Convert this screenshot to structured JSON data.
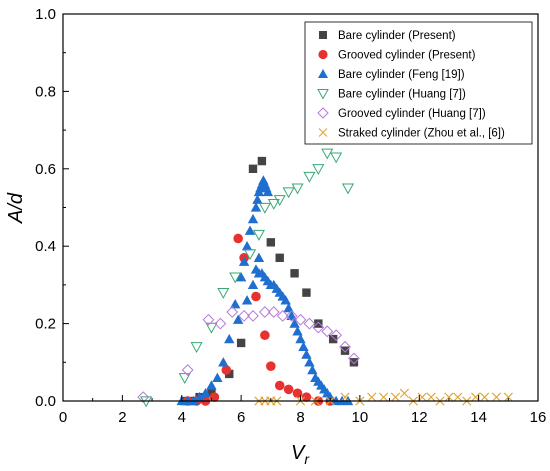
{
  "chart_data": {
    "type": "scatter",
    "xlabel": "V",
    "xlabel_sub": "r",
    "ylabel": "A/d",
    "xlim": [
      0,
      16
    ],
    "ylim": [
      0,
      1.0
    ],
    "xticks": [
      "0",
      "2",
      "4",
      "6",
      "8",
      "10",
      "12",
      "14",
      "16"
    ],
    "yticks": [
      "0.0",
      "0.2",
      "0.4",
      "0.6",
      "0.8",
      "1.0"
    ],
    "grid": false,
    "legend_position": "top-right",
    "series": [
      {
        "name": "Bare cylinder (Present)",
        "marker": "square",
        "color": "#444444",
        "x": [
          4.1,
          4.3,
          4.6,
          5.0,
          5.6,
          6.0,
          6.4,
          6.7,
          7.0,
          7.3,
          7.8,
          8.2,
          8.6,
          9.1,
          9.5,
          9.8
        ],
        "y": [
          0.0,
          0.0,
          0.01,
          0.02,
          0.07,
          0.15,
          0.6,
          0.62,
          0.41,
          0.37,
          0.33,
          0.28,
          0.2,
          0.16,
          0.13,
          0.1
        ]
      },
      {
        "name": "Grooved cylinder (Present)",
        "marker": "circle",
        "color": "#e8322f",
        "x": [
          4.2,
          4.5,
          4.8,
          5.1,
          5.5,
          5.9,
          6.1,
          6.5,
          6.8,
          7.0,
          7.3,
          7.6,
          7.9,
          8.2,
          8.6,
          9.0
        ],
        "y": [
          0.0,
          0.0,
          0.0,
          0.01,
          0.08,
          0.42,
          0.37,
          0.27,
          0.17,
          0.09,
          0.04,
          0.03,
          0.02,
          0.01,
          0.0,
          0.0
        ]
      },
      {
        "name": "Bare cylinder (Feng [19])",
        "marker": "triangle-up",
        "color": "#1f6fd1",
        "x": [
          4.0,
          4.2,
          4.4,
          4.6,
          4.8,
          5.0,
          5.2,
          5.4,
          5.6,
          5.8,
          6.0,
          6.1,
          6.2,
          6.3,
          6.4,
          6.5,
          6.55,
          6.6,
          6.65,
          6.7,
          6.75,
          6.8,
          6.85,
          6.9,
          6.6,
          6.7,
          6.8,
          6.9,
          7.0,
          7.1,
          7.2,
          7.3,
          7.4,
          7.5,
          7.6,
          7.7,
          7.8,
          7.9,
          8.0,
          8.1,
          8.2,
          8.3,
          8.4,
          8.5,
          8.6,
          8.7,
          8.8,
          8.9,
          9.0,
          9.2,
          9.4,
          9.6,
          5.9,
          6.2,
          6.4,
          6.5,
          6.6
        ],
        "y": [
          0.0,
          0.0,
          0.0,
          0.01,
          0.02,
          0.04,
          0.06,
          0.1,
          0.16,
          0.25,
          0.32,
          0.36,
          0.4,
          0.44,
          0.47,
          0.5,
          0.52,
          0.54,
          0.55,
          0.56,
          0.57,
          0.56,
          0.55,
          0.54,
          0.33,
          0.33,
          0.32,
          0.31,
          0.3,
          0.3,
          0.29,
          0.28,
          0.27,
          0.26,
          0.24,
          0.22,
          0.2,
          0.18,
          0.16,
          0.14,
          0.12,
          0.1,
          0.08,
          0.06,
          0.05,
          0.04,
          0.03,
          0.02,
          0.01,
          0.0,
          0.0,
          0.0,
          0.21,
          0.26,
          0.3,
          0.34,
          0.37
        ]
      },
      {
        "name": "Bare cylinder (Huang [7])",
        "marker": "triangle-down",
        "color": "#3aa876",
        "x": [
          2.8,
          4.1,
          4.5,
          5.0,
          5.4,
          5.8,
          6.3,
          6.6,
          6.8,
          7.1,
          7.3,
          7.6,
          7.9,
          8.3,
          8.6,
          8.9,
          9.2,
          9.6
        ],
        "y": [
          0.0,
          0.06,
          0.14,
          0.19,
          0.28,
          0.32,
          0.38,
          0.43,
          0.5,
          0.51,
          0.52,
          0.54,
          0.55,
          0.58,
          0.6,
          0.64,
          0.63,
          0.55
        ]
      },
      {
        "name": "Grooved cylinder (Huang [7])",
        "marker": "diamond",
        "color": "#b57ad6",
        "x": [
          2.7,
          4.2,
          4.9,
          5.3,
          5.7,
          6.1,
          6.4,
          6.8,
          7.1,
          7.4,
          7.7,
          8.0,
          8.3,
          8.6,
          8.9,
          9.2,
          9.5,
          9.8
        ],
        "y": [
          0.01,
          0.08,
          0.21,
          0.2,
          0.23,
          0.22,
          0.22,
          0.23,
          0.23,
          0.22,
          0.22,
          0.21,
          0.2,
          0.19,
          0.18,
          0.17,
          0.14,
          0.11
        ]
      },
      {
        "name": "Straked cylinder (Zhou et al., [6])",
        "marker": "x",
        "color": "#e0a436",
        "x": [
          6.6,
          6.8,
          7.0,
          7.2,
          8.0,
          8.5,
          9.0,
          9.5,
          10.0,
          10.4,
          10.8,
          11.2,
          11.5,
          11.8,
          12.1,
          12.4,
          12.7,
          13.0,
          13.3,
          13.6,
          13.9,
          14.2,
          14.6,
          15.0
        ],
        "y": [
          0.0,
          0.0,
          0.0,
          0.0,
          0.0,
          0.0,
          0.0,
          0.01,
          0.0,
          0.01,
          0.01,
          0.01,
          0.02,
          0.0,
          0.01,
          0.01,
          0.0,
          0.01,
          0.01,
          0.0,
          0.01,
          0.01,
          0.01,
          0.01
        ]
      }
    ]
  }
}
